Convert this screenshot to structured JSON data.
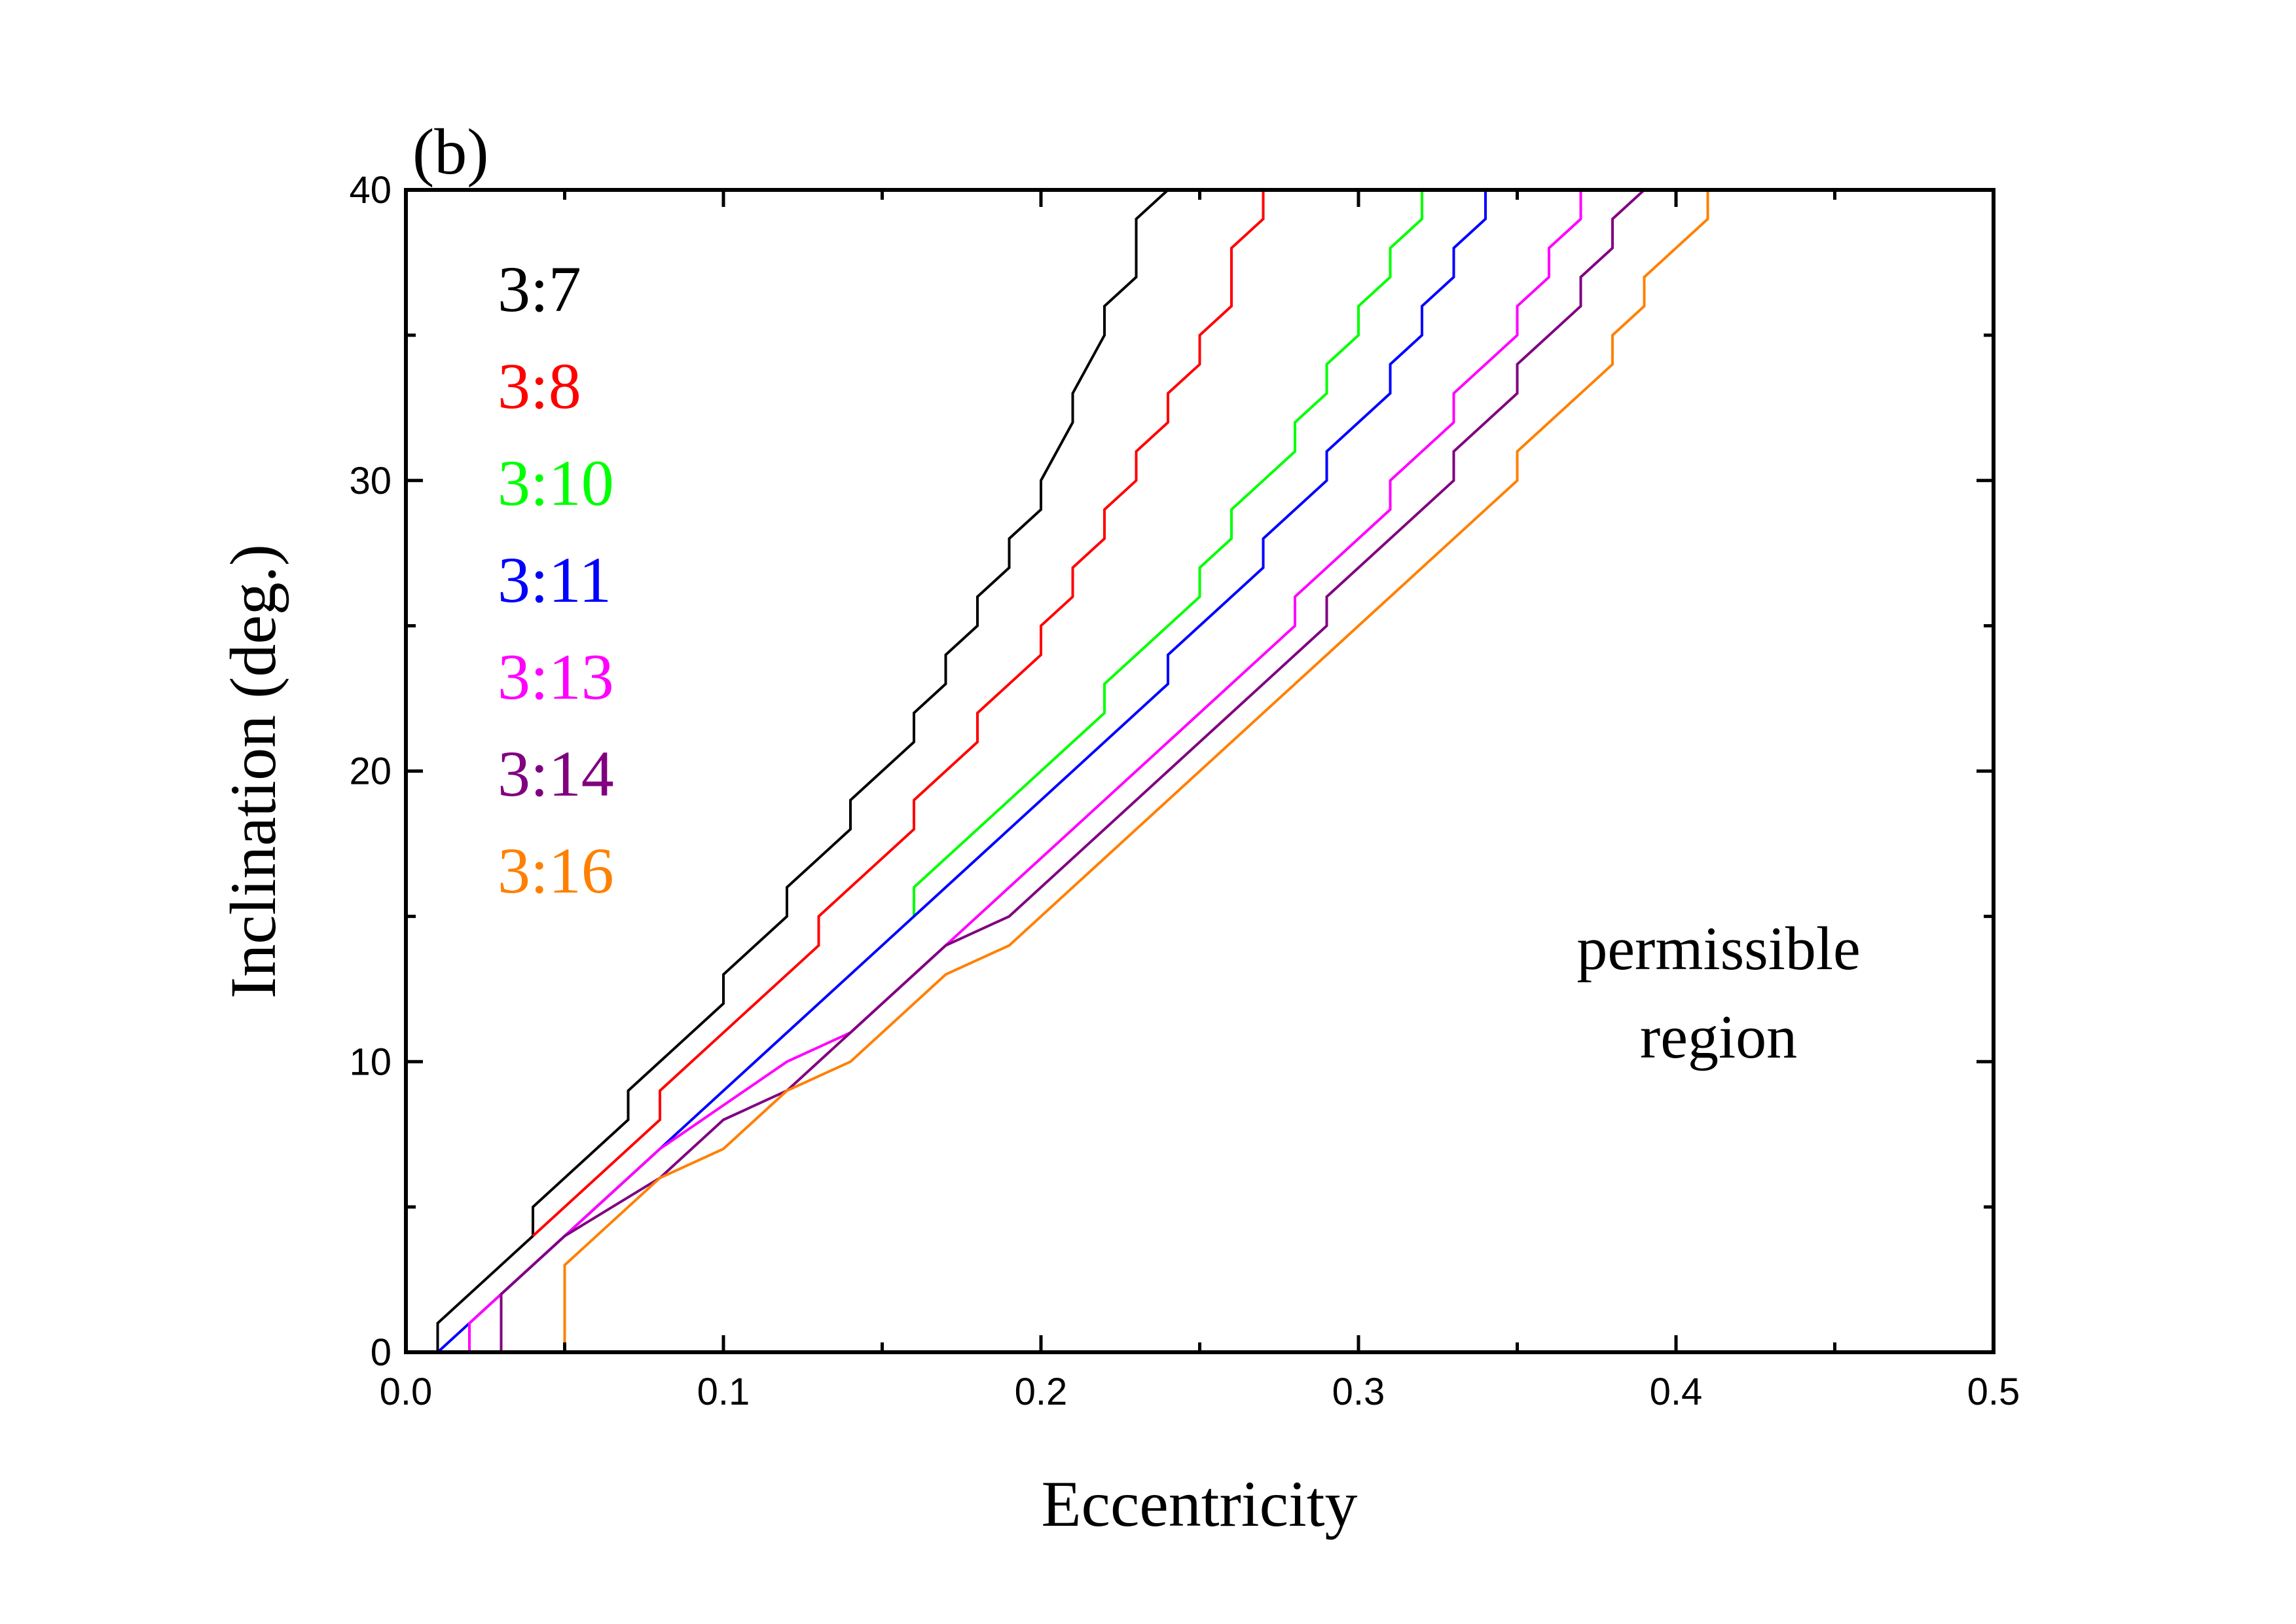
{
  "chart_data": {
    "type": "line",
    "panel_label": "(b)",
    "xlabel": "Eccentricity",
    "ylabel": "Inclination (deg.)",
    "xlim": [
      0.0,
      0.5
    ],
    "ylim": [
      0,
      40
    ],
    "x_ticks": [
      "0.0",
      "0.1",
      "0.2",
      "0.3",
      "0.4",
      "0.5"
    ],
    "y_ticks": [
      "0",
      "10",
      "20",
      "30",
      "40"
    ],
    "annotation": [
      "permissible",
      "region"
    ],
    "legend_placement": "top-left",
    "grid": false,
    "series": [
      {
        "name": "3:7",
        "color": "#000000",
        "points": [
          [
            0.01,
            0
          ],
          [
            0.01,
            1
          ],
          [
            0.04,
            4
          ],
          [
            0.04,
            5
          ],
          [
            0.07,
            8
          ],
          [
            0.07,
            9
          ],
          [
            0.1,
            12
          ],
          [
            0.1,
            13
          ],
          [
            0.12,
            15
          ],
          [
            0.12,
            16
          ],
          [
            0.14,
            18
          ],
          [
            0.14,
            19
          ],
          [
            0.16,
            21
          ],
          [
            0.16,
            22
          ],
          [
            0.17,
            23
          ],
          [
            0.17,
            24
          ],
          [
            0.18,
            25
          ],
          [
            0.18,
            26
          ],
          [
            0.19,
            27
          ],
          [
            0.19,
            28
          ],
          [
            0.2,
            29
          ],
          [
            0.2,
            30
          ],
          [
            0.21,
            32
          ],
          [
            0.21,
            33
          ],
          [
            0.22,
            35
          ],
          [
            0.22,
            36
          ],
          [
            0.23,
            37
          ],
          [
            0.23,
            39
          ],
          [
            0.24,
            40
          ]
        ]
      },
      {
        "name": "3:8",
        "color": "#ff0000",
        "points": [
          [
            0.04,
            4
          ],
          [
            0.08,
            8
          ],
          [
            0.08,
            9
          ],
          [
            0.13,
            14
          ],
          [
            0.13,
            15
          ],
          [
            0.16,
            18
          ],
          [
            0.16,
            19
          ],
          [
            0.18,
            21
          ],
          [
            0.18,
            22
          ],
          [
            0.2,
            24
          ],
          [
            0.2,
            25
          ],
          [
            0.21,
            26
          ],
          [
            0.21,
            27
          ],
          [
            0.22,
            28
          ],
          [
            0.22,
            29
          ],
          [
            0.23,
            30
          ],
          [
            0.23,
            31
          ],
          [
            0.24,
            32
          ],
          [
            0.24,
            33
          ],
          [
            0.25,
            34
          ],
          [
            0.25,
            35
          ],
          [
            0.26,
            36
          ],
          [
            0.26,
            38
          ],
          [
            0.27,
            39
          ],
          [
            0.27,
            40
          ]
        ]
      },
      {
        "name": "3:10",
        "color": "#00ff00",
        "points": [
          [
            0.16,
            15
          ],
          [
            0.16,
            16
          ],
          [
            0.22,
            22
          ],
          [
            0.22,
            23
          ],
          [
            0.25,
            26
          ],
          [
            0.25,
            27
          ],
          [
            0.26,
            28
          ],
          [
            0.26,
            29
          ],
          [
            0.28,
            31
          ],
          [
            0.28,
            32
          ],
          [
            0.29,
            33
          ],
          [
            0.29,
            34
          ],
          [
            0.3,
            35
          ],
          [
            0.3,
            36
          ],
          [
            0.31,
            37
          ],
          [
            0.31,
            38
          ],
          [
            0.32,
            39
          ],
          [
            0.32,
            40
          ]
        ]
      },
      {
        "name": "3:11",
        "color": "#0000ff",
        "points": [
          [
            0.01,
            0
          ],
          [
            0.24,
            23
          ],
          [
            0.24,
            24
          ],
          [
            0.27,
            27
          ],
          [
            0.27,
            28
          ],
          [
            0.29,
            30
          ],
          [
            0.29,
            31
          ],
          [
            0.31,
            33
          ],
          [
            0.31,
            34
          ],
          [
            0.32,
            35
          ],
          [
            0.32,
            36
          ],
          [
            0.33,
            37
          ],
          [
            0.33,
            38
          ],
          [
            0.34,
            39
          ],
          [
            0.34,
            40
          ]
        ]
      },
      {
        "name": "3:13",
        "color": "#ff00ff",
        "points": [
          [
            0.02,
            0
          ],
          [
            0.02,
            1
          ],
          [
            0.08,
            7
          ],
          [
            0.12,
            10
          ],
          [
            0.14,
            11
          ],
          [
            0.28,
            25
          ],
          [
            0.28,
            26
          ],
          [
            0.31,
            29
          ],
          [
            0.31,
            30
          ],
          [
            0.33,
            32
          ],
          [
            0.33,
            33
          ],
          [
            0.35,
            35
          ],
          [
            0.35,
            36
          ],
          [
            0.36,
            37
          ],
          [
            0.36,
            38
          ],
          [
            0.37,
            39
          ],
          [
            0.37,
            40
          ]
        ]
      },
      {
        "name": "3:14",
        "color": "#800080",
        "points": [
          [
            0.03,
            0
          ],
          [
            0.03,
            2
          ],
          [
            0.05,
            4
          ],
          [
            0.08,
            6
          ],
          [
            0.1,
            8
          ],
          [
            0.12,
            9
          ],
          [
            0.17,
            14
          ],
          [
            0.19,
            15
          ],
          [
            0.29,
            25
          ],
          [
            0.29,
            26
          ],
          [
            0.33,
            30
          ],
          [
            0.33,
            31
          ],
          [
            0.35,
            33
          ],
          [
            0.35,
            34
          ],
          [
            0.37,
            36
          ],
          [
            0.37,
            37
          ],
          [
            0.38,
            38
          ],
          [
            0.38,
            39
          ],
          [
            0.39,
            40
          ]
        ]
      },
      {
        "name": "3:16",
        "color": "#ff8000",
        "points": [
          [
            0.05,
            0
          ],
          [
            0.05,
            3
          ],
          [
            0.08,
            6
          ],
          [
            0.1,
            7
          ],
          [
            0.12,
            9
          ],
          [
            0.14,
            10
          ],
          [
            0.17,
            13
          ],
          [
            0.19,
            14
          ],
          [
            0.35,
            30
          ],
          [
            0.35,
            31
          ],
          [
            0.38,
            34
          ],
          [
            0.38,
            35
          ],
          [
            0.39,
            36
          ],
          [
            0.39,
            37
          ],
          [
            0.41,
            39
          ],
          [
            0.41,
            40
          ]
        ]
      }
    ]
  }
}
